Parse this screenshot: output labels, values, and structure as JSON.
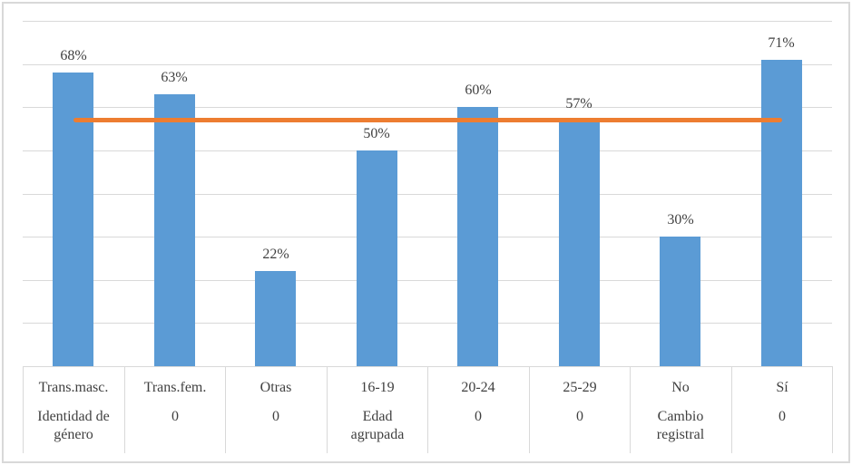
{
  "chart_data": {
    "type": "bar",
    "title": "",
    "xlabel": "",
    "ylabel": "",
    "categories": [
      "Trans.masc.",
      "Trans.fem.",
      "Otras",
      "16-19",
      "20-24",
      "25-29",
      "No",
      "Sí"
    ],
    "group_row": [
      "Identidad de género",
      "0",
      "0",
      "Edad agrupada",
      "0",
      "0",
      "Cambio registral",
      "0"
    ],
    "values": [
      68,
      63,
      22,
      50,
      60,
      57,
      30,
      71
    ],
    "value_labels": [
      "68%",
      "63%",
      "22%",
      "50%",
      "60%",
      "57%",
      "30%",
      "71%"
    ],
    "reference_line": {
      "value": 57,
      "color": "#ED7D31"
    },
    "ylim": [
      0,
      80
    ],
    "grid_step": 10,
    "grid_on": true,
    "legend": "none",
    "colors": {
      "bar": "#5B9BD5",
      "grid": "#D9D9D9",
      "axis": "#D9D9D9",
      "text": "#404040",
      "border": "#D9D9D9"
    }
  }
}
